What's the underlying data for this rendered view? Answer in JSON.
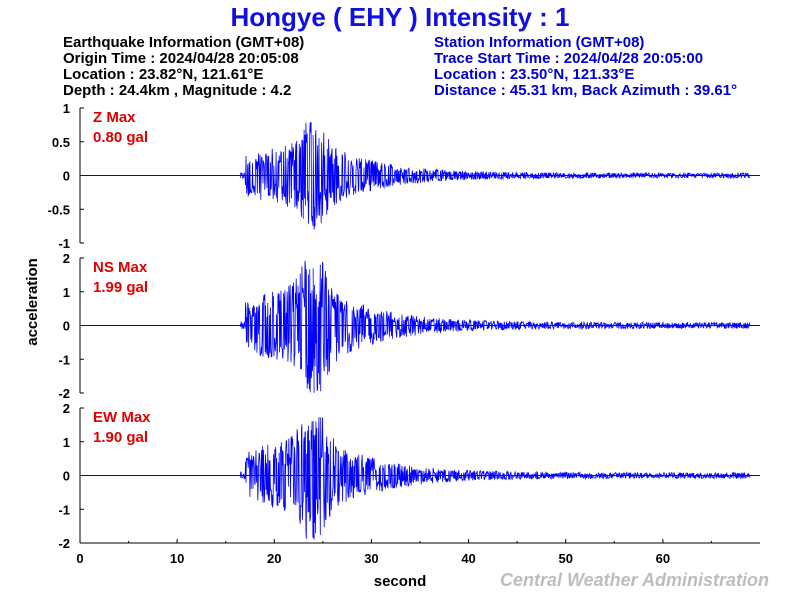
{
  "title": "Hongye ( EHY ) Intensity : 1",
  "earthquake": {
    "heading": "Earthquake Information  (GMT+08)",
    "origin_time": "Origin Time : 2024/04/28 20:05:08",
    "location": "Location : 23.82°N, 121.61°E",
    "depth_magnitude": "Depth : 24.4km , Magnitude : 4.2"
  },
  "station": {
    "heading": "Station Information  (GMT+08)",
    "trace_start": "Trace Start Time : 2024/04/28 20:05:00",
    "location": "Location : 23.50°N, 121.33°E",
    "distance": "Distance : 45.31 km, Back Azimuth : 39.61°"
  },
  "credit": "Central Weather Administration",
  "colors": {
    "title": "#1010e0",
    "trace": "#0000ff",
    "max_label": "#e00000",
    "station_text": "#0000cc",
    "credit": "#bdbdbd"
  },
  "chart_data": {
    "type": "line",
    "xlabel": "second",
    "ylabel": "acceleration",
    "xlim": [
      0,
      70
    ],
    "x_ticks": [
      0,
      10,
      20,
      30,
      40,
      50,
      60
    ],
    "signal_onset_s": 17,
    "peak_time_s": 24,
    "series": [
      {
        "name": "Z Max",
        "max_value": "0.80 gal",
        "ylim": [
          -1,
          1
        ],
        "y_ticks": [
          "1",
          "0.5",
          "0",
          "-0.5",
          "-1"
        ],
        "peak_amplitude": 0.8
      },
      {
        "name": "NS Max",
        "max_value": "1.99 gal",
        "ylim": [
          -2,
          2
        ],
        "y_ticks": [
          "2",
          "1",
          "0",
          "-1",
          "-2"
        ],
        "peak_amplitude": 1.99
      },
      {
        "name": "EW Max",
        "max_value": "1.90 gal",
        "ylim": [
          -2,
          2
        ],
        "y_ticks": [
          "2",
          "1",
          "0",
          "-1",
          "-2"
        ],
        "peak_amplitude": 1.9
      }
    ]
  }
}
